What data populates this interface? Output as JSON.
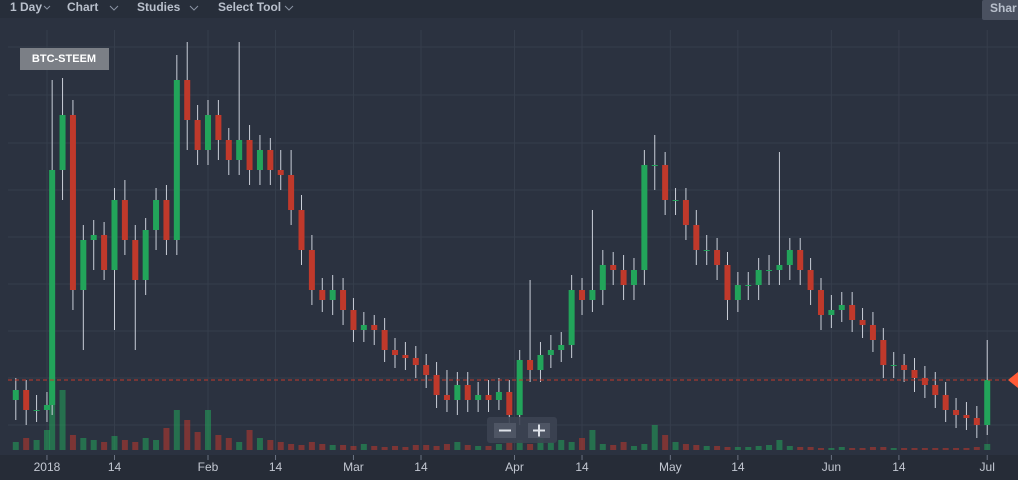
{
  "toolbar": {
    "items": [
      "1 Day",
      "Chart",
      "Studies",
      "Select Tool"
    ],
    "share": "Shar"
  },
  "chart_data": {
    "type": "candlestick",
    "symbol": "BTC-STEEM",
    "x": [
      -6,
      -4,
      -2,
      0,
      1,
      3,
      5,
      7,
      9,
      11,
      13,
      15,
      17,
      19,
      21,
      23,
      25,
      27,
      29,
      31,
      33,
      35,
      37,
      39,
      41,
      43,
      45,
      47,
      49,
      51,
      53,
      55,
      57,
      59,
      61,
      63,
      65,
      67,
      69,
      71,
      73,
      75,
      77,
      79,
      81,
      83,
      85,
      87,
      89,
      91,
      93,
      95,
      97,
      99,
      101,
      103,
      105,
      107,
      109,
      111,
      113,
      115,
      117,
      119,
      121,
      123,
      125,
      127,
      129,
      131,
      133,
      135,
      137,
      139,
      141,
      143,
      145,
      147,
      149,
      151,
      153,
      155,
      157,
      159,
      161,
      163,
      165,
      167,
      169,
      171,
      173,
      175,
      177,
      179,
      181
    ],
    "open": [
      50,
      60,
      40,
      40,
      45,
      280,
      335,
      160,
      210,
      215,
      180,
      250,
      210,
      170,
      220,
      250,
      210,
      370,
      330,
      300,
      335,
      310,
      290,
      310,
      280,
      300,
      280,
      275,
      240,
      200,
      160,
      150,
      160,
      140,
      120,
      125,
      120,
      100,
      95,
      92,
      85,
      75,
      55,
      50,
      65,
      50,
      55,
      50,
      58,
      35,
      90,
      80,
      95,
      100,
      105,
      160,
      150,
      160,
      185,
      180,
      165,
      180,
      285,
      285,
      250,
      250,
      225,
      200,
      200,
      185,
      150,
      165,
      165,
      180,
      180,
      185,
      200,
      180,
      160,
      135,
      140,
      145,
      130,
      125,
      110,
      85,
      85,
      80,
      72,
      65,
      55,
      40,
      35,
      32,
      25
    ],
    "high": [
      72,
      70,
      55,
      58,
      370,
      372,
      350,
      225,
      230,
      228,
      262,
      270,
      225,
      232,
      262,
      265,
      395,
      408,
      345,
      350,
      350,
      322,
      408,
      325,
      315,
      312,
      300,
      300,
      255,
      215,
      172,
      175,
      172,
      152,
      138,
      135,
      132,
      112,
      108,
      104,
      96,
      88,
      80,
      78,
      78,
      68,
      70,
      72,
      70,
      100,
      170,
      108,
      115,
      118,
      175,
      172,
      240,
      200,
      198,
      195,
      192,
      300,
      315,
      298,
      262,
      262,
      240,
      215,
      212,
      198,
      178,
      178,
      192,
      195,
      298,
      212,
      212,
      192,
      172,
      155,
      158,
      158,
      142,
      138,
      122,
      98,
      96,
      92,
      84,
      78,
      68,
      52,
      48,
      44,
      110
    ],
    "low": [
      30,
      25,
      28,
      28,
      35,
      250,
      140,
      100,
      180,
      170,
      120,
      195,
      100,
      155,
      200,
      195,
      195,
      300,
      285,
      285,
      290,
      275,
      275,
      265,
      265,
      265,
      260,
      225,
      185,
      145,
      138,
      135,
      125,
      108,
      108,
      105,
      88,
      82,
      80,
      72,
      62,
      42,
      38,
      35,
      38,
      38,
      38,
      40,
      25,
      25,
      68,
      68,
      82,
      88,
      92,
      135,
      138,
      145,
      165,
      150,
      150,
      165,
      260,
      235,
      235,
      210,
      185,
      185,
      170,
      130,
      138,
      150,
      150,
      165,
      165,
      170,
      165,
      145,
      120,
      122,
      128,
      118,
      112,
      98,
      72,
      72,
      68,
      58,
      52,
      42,
      28,
      22,
      20,
      12,
      15
    ],
    "close": [
      60,
      40,
      40,
      45,
      280,
      335,
      160,
      210,
      215,
      180,
      250,
      210,
      170,
      220,
      250,
      210,
      370,
      330,
      300,
      335,
      310,
      290,
      310,
      280,
      300,
      280,
      275,
      240,
      200,
      160,
      150,
      160,
      140,
      120,
      125,
      120,
      100,
      95,
      92,
      85,
      75,
      55,
      50,
      65,
      50,
      55,
      50,
      58,
      35,
      90,
      80,
      95,
      100,
      105,
      160,
      150,
      160,
      185,
      180,
      165,
      180,
      285,
      285,
      250,
      250,
      225,
      200,
      200,
      185,
      150,
      165,
      165,
      180,
      180,
      185,
      200,
      180,
      160,
      135,
      140,
      145,
      130,
      125,
      110,
      85,
      85,
      80,
      72,
      65,
      55,
      40,
      35,
      32,
      25,
      70
    ],
    "volume": [
      8,
      12,
      10,
      20,
      100,
      60,
      15,
      12,
      10,
      8,
      14,
      10,
      8,
      12,
      10,
      22,
      40,
      30,
      18,
      40,
      15,
      12,
      8,
      20,
      12,
      10,
      8,
      6,
      5,
      8,
      6,
      5,
      5,
      4,
      6,
      4,
      3,
      4,
      3,
      5,
      5,
      4,
      6,
      8,
      5,
      4,
      4,
      6,
      8,
      10,
      6,
      20,
      8,
      10,
      8,
      12,
      20,
      6,
      5,
      8,
      4,
      6,
      25,
      15,
      8,
      6,
      5,
      4,
      4,
      3,
      3,
      3,
      4,
      5,
      10,
      4,
      3,
      3,
      2,
      2,
      3,
      2,
      2,
      3,
      3,
      2,
      2,
      2,
      2,
      2,
      2,
      2,
      2,
      3,
      6
    ],
    "up_color": "#22a45a",
    "down_color": "#c0392b",
    "last_price": 70,
    "last_price_color": "#c0392b",
    "ylim": [
      0,
      420
    ],
    "yticks": [
      25,
      72,
      119,
      166,
      213,
      260,
      307,
      355,
      403
    ],
    "vlim": [
      0,
      105
    ],
    "xlim": [
      -7.5,
      185
    ],
    "xticks": [
      {
        "value": 0,
        "label": "2018"
      },
      {
        "value": 13,
        "label": "14"
      },
      {
        "value": 31,
        "label": "Feb"
      },
      {
        "value": 44,
        "label": "14"
      },
      {
        "value": 59,
        "label": "Mar"
      },
      {
        "value": 72,
        "label": "14"
      },
      {
        "value": 90,
        "label": "Apr"
      },
      {
        "value": 103,
        "label": "14"
      },
      {
        "value": 120,
        "label": "May"
      },
      {
        "value": 133,
        "label": "14"
      },
      {
        "value": 151,
        "label": "Jun"
      },
      {
        "value": 164,
        "label": "14"
      },
      {
        "value": 181,
        "label": "Jul"
      }
    ],
    "grid": true
  }
}
